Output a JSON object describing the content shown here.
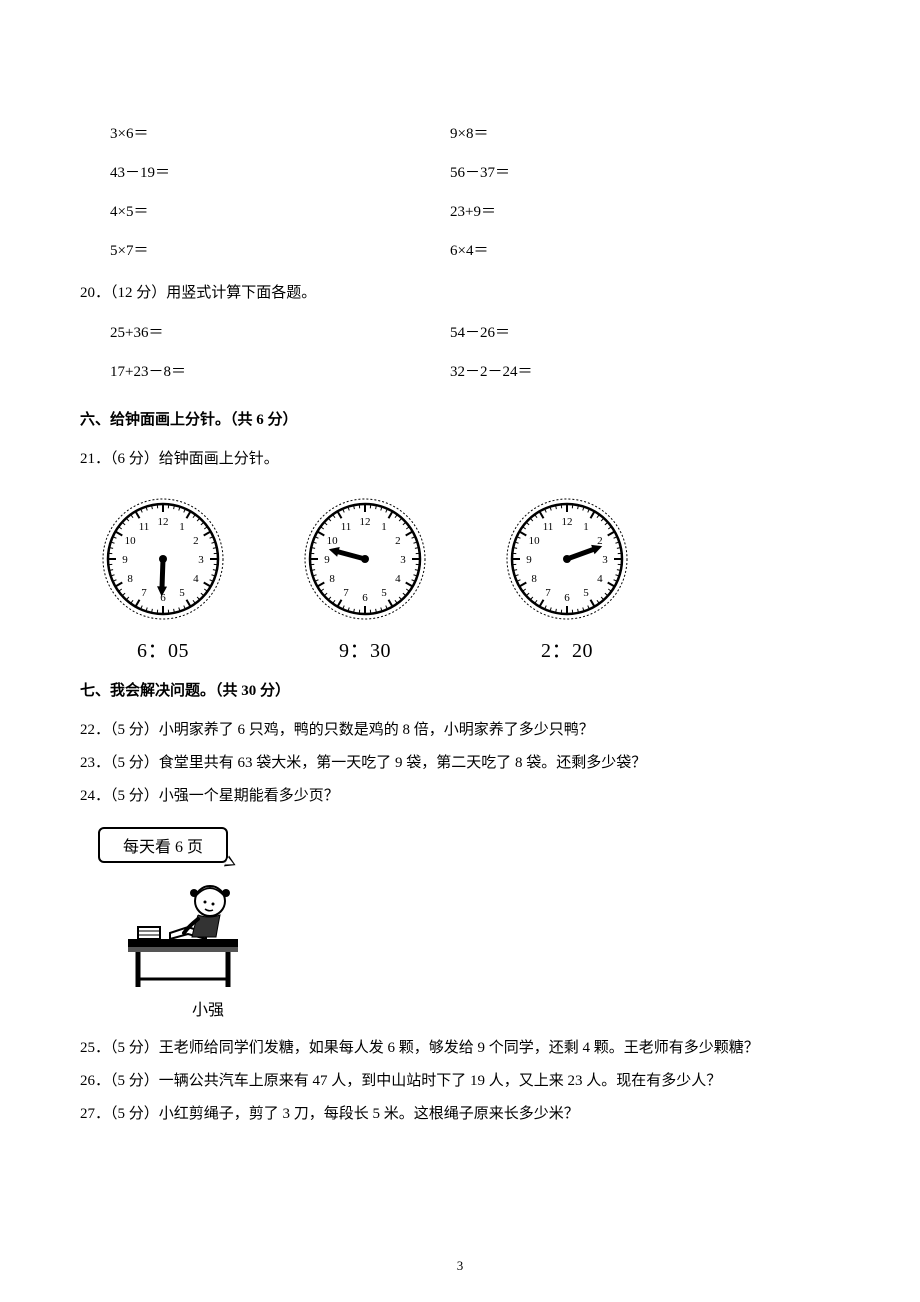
{
  "math_rows": [
    {
      "l": "3×6＝",
      "r": "9×8＝"
    },
    {
      "l": "43－19＝",
      "r": "56－37＝"
    },
    {
      "l": "4×5＝",
      "r": "23+9＝"
    },
    {
      "l": "5×7＝",
      "r": "6×4＝"
    }
  ],
  "q20": "20．（12 分）用竖式计算下面各题。",
  "vertical_rows": [
    {
      "l": "25+36＝",
      "r": "54－26＝"
    },
    {
      "l": "17+23－8＝",
      "r": "32－2－24＝"
    }
  ],
  "section6": "六、给钟面画上分针。（共 6 分）",
  "q21": "21．（6 分）给钟面画上分针。",
  "clocks": [
    {
      "label": "6：05",
      "hour_angle": 182,
      "show_minute": false
    },
    {
      "label": "9：30",
      "hour_angle": 285,
      "show_minute": false
    },
    {
      "label": "2：20",
      "hour_angle": 70,
      "show_minute": false
    }
  ],
  "section7": "七、我会解决问题。（共 30 分）",
  "q22": "22．（5 分）小明家养了 6 只鸡，鸭的只数是鸡的 8 倍，小明家养了多少只鸭？",
  "q23": "23．（5 分）食堂里共有 63 袋大米，第一天吃了 9 袋，第二天吃了 8 袋。还剩多少袋？",
  "q24": "24．（5 分）小强一个星期能看多少页？",
  "speech": "每天看 6 页",
  "student": "小强",
  "q25": "25．（5 分）王老师给同学们发糖，如果每人发 6 颗，够发给 9 个同学，还剩 4 颗。王老师有多少颗糖？",
  "q26": "26．（5 分）一辆公共汽车上原来有 47 人，到中山站时下了 19 人，又上来 23 人。现在有多少人？",
  "q27": "27．（5 分）小红剪绳子，剪了 3 刀，每段长 5 米。这根绳子原来长多少米？",
  "page": "3",
  "clock_style": {
    "radius": 55,
    "numbers": [
      "12",
      "1",
      "2",
      "3",
      "4",
      "5",
      "6",
      "7",
      "8",
      "9",
      "10",
      "11"
    ],
    "face_stroke": "#000000",
    "face_fill": "#ffffff",
    "tick_color": "#000000",
    "hand_color": "#000000",
    "num_fontsize": 11
  }
}
